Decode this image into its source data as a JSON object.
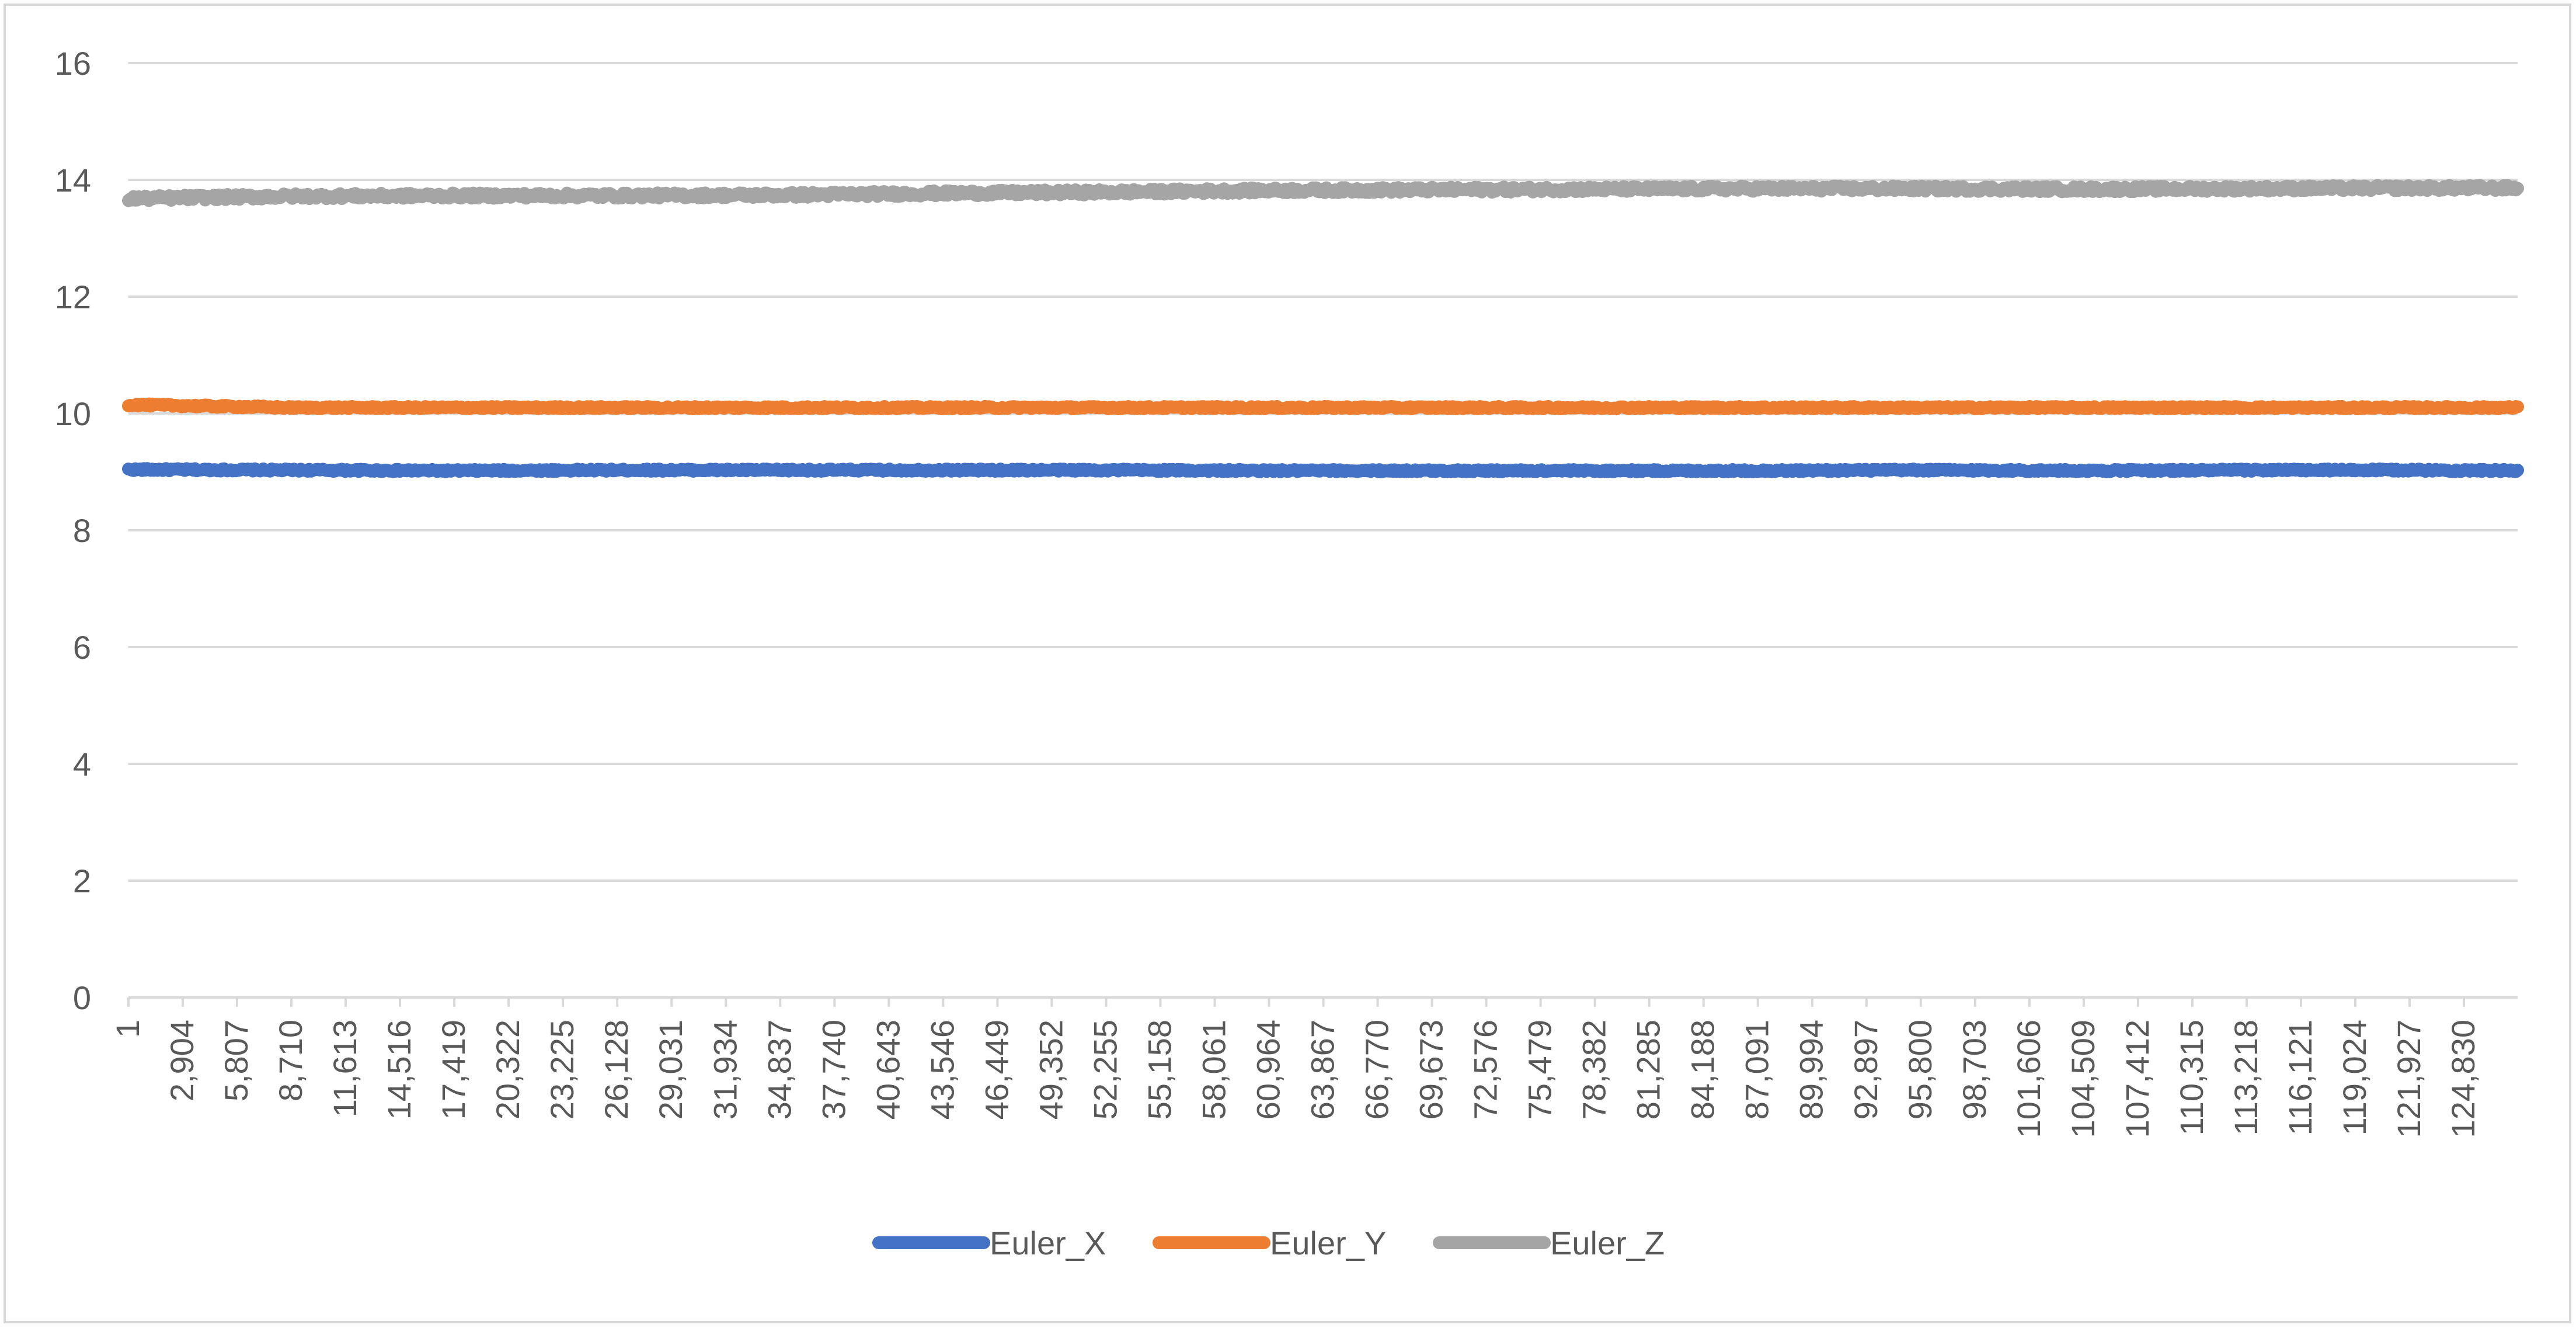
{
  "chart_data": {
    "type": "line",
    "title": "",
    "xlabel": "",
    "ylabel": "",
    "ylim": [
      0,
      16
    ],
    "yticks": [
      0,
      2,
      4,
      6,
      8,
      10,
      12,
      14,
      16
    ],
    "x_range": [
      1,
      127700
    ],
    "xtick_labels": [
      "1",
      "2,904",
      "5,807",
      "8,710",
      "11,613",
      "14,516",
      "17,419",
      "20,322",
      "23,225",
      "26,128",
      "29,031",
      "31,934",
      "34,837",
      "37,740",
      "40,643",
      "43,546",
      "46,449",
      "49,352",
      "52,255",
      "55,158",
      "58,061",
      "60,964",
      "63,867",
      "66,770",
      "69,673",
      "72,576",
      "75,479",
      "78,382",
      "81,285",
      "84,188",
      "87,091",
      "89,994",
      "92,897",
      "95,800",
      "98,703",
      "101,606",
      "104,509",
      "107,412",
      "110,315",
      "113,218",
      "116,121",
      "119,024",
      "121,927",
      "124,830"
    ],
    "xtick_step": 2903,
    "grid": true,
    "legend_position": "bottom",
    "series": [
      {
        "name": "Euler_X",
        "color": "#4472c4",
        "x": [
          1,
          8710,
          17419,
          26128,
          34837,
          43546,
          52255,
          60964,
          69673,
          78382,
          87091,
          95800,
          104509,
          113218,
          121927,
          127700
        ],
        "values": [
          9.04,
          9.03,
          9.02,
          9.03,
          9.03,
          9.03,
          9.03,
          9.02,
          9.02,
          9.02,
          9.02,
          9.03,
          9.02,
          9.03,
          9.03,
          9.02
        ]
      },
      {
        "name": "Euler_Y",
        "color": "#ed7d31",
        "x": [
          1,
          8710,
          17419,
          26128,
          34837,
          43546,
          52255,
          60964,
          69673,
          78382,
          87091,
          95800,
          104509,
          113218,
          121927,
          127700
        ],
        "values": [
          10.15,
          10.1,
          10.1,
          10.1,
          10.1,
          10.1,
          10.1,
          10.1,
          10.1,
          10.1,
          10.1,
          10.1,
          10.1,
          10.1,
          10.1,
          10.1
        ]
      },
      {
        "name": "Euler_Z",
        "color": "#a5a5a5",
        "x": [
          1,
          8710,
          17419,
          26128,
          34837,
          43546,
          52255,
          60964,
          69673,
          78382,
          87091,
          95800,
          104509,
          113218,
          121927,
          127700
        ],
        "values": [
          13.68,
          13.72,
          13.73,
          13.73,
          13.74,
          13.77,
          13.79,
          13.82,
          13.83,
          13.84,
          13.85,
          13.85,
          13.84,
          13.85,
          13.86,
          13.86
        ]
      }
    ]
  }
}
